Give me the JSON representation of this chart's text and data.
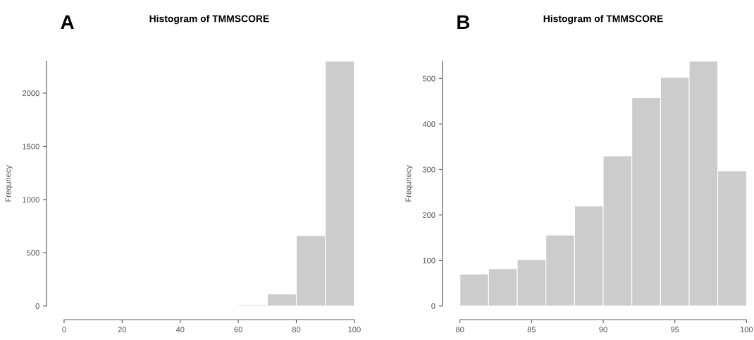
{
  "chart_data": [
    {
      "type": "histogram",
      "title": "Histogram of TMMSCORE",
      "ylabel": "Frequnecy",
      "annotations": [
        "A"
      ],
      "color": "#cccccc",
      "bins": [
        60,
        70,
        80,
        90,
        100
      ],
      "values": [
        12,
        113,
        662,
        2300
      ],
      "xlim": [
        0,
        100
      ],
      "xticks": [
        0,
        20,
        40,
        60,
        80,
        100
      ],
      "ylim": [
        0,
        2300
      ],
      "yticks": [
        0,
        500,
        1000,
        1500,
        2000
      ],
      "grid": false
    },
    {
      "type": "histogram",
      "title": "Histogram of TMMSCORE",
      "ylabel": "Frequnecy",
      "annotations": [
        "B"
      ],
      "color": "#cccccc",
      "bins": [
        80,
        82,
        84,
        86,
        88,
        90,
        92,
        94,
        96,
        98,
        100
      ],
      "values": [
        70,
        82,
        102,
        156,
        220,
        330,
        458,
        503,
        538,
        297
      ],
      "xlim": [
        80,
        100
      ],
      "xticks": [
        80,
        85,
        90,
        95,
        100
      ],
      "ylim": [
        0,
        538
      ],
      "yticks": [
        0,
        100,
        200,
        300,
        400,
        500
      ],
      "grid": false
    }
  ]
}
